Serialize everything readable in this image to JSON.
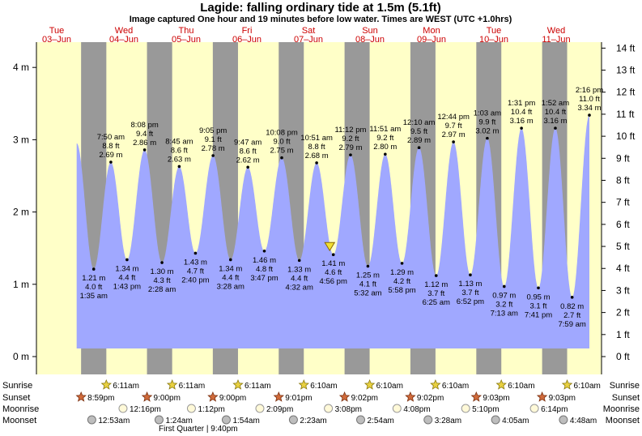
{
  "header": {
    "title": "Lagide: falling  ordinary tide at 1.5m (5.1ft)",
    "subtitle": "Image captured One hour and 19 minutes before low water. Times are WEST (UTC +1.0hrs)"
  },
  "colors": {
    "day": "#ffffc8",
    "night": "#999999",
    "tide": "#a0a8ff",
    "day_label": "#cc0000"
  },
  "days": [
    {
      "name": "Tue",
      "date": "03–Jun"
    },
    {
      "name": "Wed",
      "date": "04–Jun"
    },
    {
      "name": "Thu",
      "date": "05–Jun"
    },
    {
      "name": "Fri",
      "date": "06–Jun"
    },
    {
      "name": "Sat",
      "date": "07–Jun"
    },
    {
      "name": "Sun",
      "date": "08–Jun"
    },
    {
      "name": "Mon",
      "date": "09–Jun"
    },
    {
      "name": "Tue",
      "date": "10–Jun"
    },
    {
      "name": "Wed",
      "date": "11–Jun"
    }
  ],
  "axes": {
    "left_ticks": [
      "0 m",
      "1 m",
      "2 m",
      "3 m",
      "4 m"
    ],
    "right_ticks": [
      "0 ft",
      "1 ft",
      "2 ft",
      "3 ft",
      "4 ft",
      "5 ft",
      "6 ft",
      "7 ft",
      "8 ft",
      "9 ft",
      "10 ft",
      "11 ft",
      "12 ft",
      "13 ft",
      "14 ft"
    ]
  },
  "chart_data": {
    "type": "area",
    "title": "Lagide: falling  ordinary tide at 1.5m (5.1ft)",
    "subtitle": "Image captured One hour and 19 minutes before low water. Times are WEST (UTC +1.0hrs)",
    "x_unit": "hours since 00:00 on 03-Jun (WEST)",
    "ylim_m": [
      0,
      4.3
    ],
    "ylabel_left": "m",
    "ylabel_right": "ft",
    "current": {
      "height_m": 1.5,
      "height_ft": 5.1,
      "state": "falling"
    },
    "extremes": [
      {
        "type": "low",
        "t": 25.58,
        "time": "1:35 am",
        "ft": "4.0 ft",
        "m": "1.21 m"
      },
      {
        "type": "high",
        "t": 31.83,
        "time": "7:50 am",
        "ft": "8.8 ft",
        "m": "2.69 m"
      },
      {
        "type": "low",
        "t": 37.72,
        "time": "1:43 pm",
        "ft": "4.4 ft",
        "m": "1.34 m"
      },
      {
        "type": "high",
        "t": 44.13,
        "time": "8:08 pm",
        "ft": "9.4 ft",
        "m": "2.86 m"
      },
      {
        "type": "low",
        "t": 50.47,
        "time": "2:28 am",
        "ft": "4.3 ft",
        "m": "1.30 m"
      },
      {
        "type": "high",
        "t": 56.75,
        "time": "8:45 am",
        "ft": "8.6 ft",
        "m": "2.63 m"
      },
      {
        "type": "low",
        "t": 62.67,
        "time": "2:40 pm",
        "ft": "4.7 ft",
        "m": "1.43 m"
      },
      {
        "type": "high",
        "t": 69.08,
        "time": "9:05 pm",
        "ft": "9.1 ft",
        "m": "2.78 m"
      },
      {
        "type": "low",
        "t": 75.47,
        "time": "3:28 am",
        "ft": "4.4 ft",
        "m": "1.34 m"
      },
      {
        "type": "high",
        "t": 81.78,
        "time": "9:47 am",
        "ft": "8.6 ft",
        "m": "2.62 m"
      },
      {
        "type": "low",
        "t": 87.78,
        "time": "3:47 pm",
        "ft": "4.8 ft",
        "m": "1.46 m"
      },
      {
        "type": "high",
        "t": 94.13,
        "time": "10:08 pm",
        "ft": "9.0 ft",
        "m": "2.75 m"
      },
      {
        "type": "low",
        "t": 100.53,
        "time": "4:32 am",
        "ft": "4.4 ft",
        "m": "1.33 m"
      },
      {
        "type": "high",
        "t": 106.85,
        "time": "10:51 am",
        "ft": "8.8 ft",
        "m": "2.68 m"
      },
      {
        "type": "low",
        "t": 112.93,
        "time": "4:56 pm",
        "ft": "4.6 ft",
        "m": "1.41 m"
      },
      {
        "type": "high",
        "t": 119.2,
        "time": "11:12 pm",
        "ft": "9.2 ft",
        "m": "2.79 m"
      },
      {
        "type": "low",
        "t": 125.53,
        "time": "5:32 am",
        "ft": "4.1 ft",
        "m": "1.25 m"
      },
      {
        "type": "high",
        "t": 131.85,
        "time": "11:51 am",
        "ft": "9.2 ft",
        "m": "2.80 m"
      },
      {
        "type": "low",
        "t": 137.97,
        "time": "5:58 pm",
        "ft": "4.2 ft",
        "m": "1.29 m"
      },
      {
        "type": "high",
        "t": 144.17,
        "time": "12:10 am",
        "ft": "9.5 ft",
        "m": "2.89 m"
      },
      {
        "type": "low",
        "t": 150.42,
        "time": "6:25 am",
        "ft": "3.7 ft",
        "m": "1.12 m"
      },
      {
        "type": "high",
        "t": 156.73,
        "time": "12:44 pm",
        "ft": "9.7 ft",
        "m": "2.97 m"
      },
      {
        "type": "low",
        "t": 162.87,
        "time": "6:52 pm",
        "ft": "3.7 ft",
        "m": "1.13 m"
      },
      {
        "type": "high",
        "t": 169.05,
        "time": "1:03 am",
        "ft": "9.9 ft",
        "m": "3.02 m"
      },
      {
        "type": "low",
        "t": 175.22,
        "time": "7:13 am",
        "ft": "3.2 ft",
        "m": "0.97 m"
      },
      {
        "type": "high",
        "t": 181.52,
        "time": "1:31 pm",
        "ft": "10.4 ft",
        "m": "3.16 m"
      },
      {
        "type": "low",
        "t": 187.68,
        "time": "7:41 pm",
        "ft": "3.1 ft",
        "m": "0.95 m"
      },
      {
        "type": "high",
        "t": 193.87,
        "time": "1:52 am",
        "ft": "10.4 ft",
        "m": "3.16 m"
      },
      {
        "type": "low",
        "t": 199.98,
        "time": "7:59 am",
        "ft": "2.7 ft",
        "m": "0.82 m"
      },
      {
        "type": "high",
        "t": 206.27,
        "time": "2:16 pm",
        "ft": "11.0 ft",
        "m": "3.34 m"
      }
    ]
  },
  "rows": {
    "labels": [
      "Sunrise",
      "Sunset",
      "Moonrise",
      "Moonset"
    ],
    "sunrise": [
      {
        "t": 30.18,
        "time": "6:11am"
      },
      {
        "t": 54.18,
        "time": "6:11am"
      },
      {
        "t": 78.18,
        "time": "6:11am"
      },
      {
        "t": 102.17,
        "time": "6:10am"
      },
      {
        "t": 126.17,
        "time": "6:10am"
      },
      {
        "t": 150.17,
        "time": "6:10am"
      },
      {
        "t": 174.17,
        "time": "6:10am"
      },
      {
        "t": 198.17,
        "time": "6:10am"
      }
    ],
    "sunset": [
      {
        "t": 20.98,
        "time": "8:59pm"
      },
      {
        "t": 45.0,
        "time": "9:00pm"
      },
      {
        "t": 69.0,
        "time": "9:00pm"
      },
      {
        "t": 93.02,
        "time": "9:01pm"
      },
      {
        "t": 117.03,
        "time": "9:02pm"
      },
      {
        "t": 141.03,
        "time": "9:02pm"
      },
      {
        "t": 165.05,
        "time": "9:03pm"
      },
      {
        "t": 189.05,
        "time": "9:03pm"
      }
    ],
    "moonrise": [
      {
        "t": 36.27,
        "time": "12:16pm"
      },
      {
        "t": 61.2,
        "time": "1:12pm"
      },
      {
        "t": 86.15,
        "time": "2:09pm"
      },
      {
        "t": 111.13,
        "time": "3:08pm"
      },
      {
        "t": 136.13,
        "time": "4:08pm"
      },
      {
        "t": 161.17,
        "time": "5:10pm"
      },
      {
        "t": 186.23,
        "time": "6:14pm"
      }
    ],
    "moonset": [
      {
        "t": 24.88,
        "time": "12:53am"
      },
      {
        "t": 49.4,
        "time": "1:24am"
      },
      {
        "t": 73.9,
        "time": "1:54am"
      },
      {
        "t": 98.38,
        "time": "2:23am"
      },
      {
        "t": 122.9,
        "time": "2:54am"
      },
      {
        "t": 147.47,
        "time": "3:28am"
      },
      {
        "t": 172.08,
        "time": "4:05am"
      },
      {
        "t": 196.8,
        "time": "4:48am"
      }
    ],
    "moon_phase": "First Quarter | 9:40pm"
  }
}
